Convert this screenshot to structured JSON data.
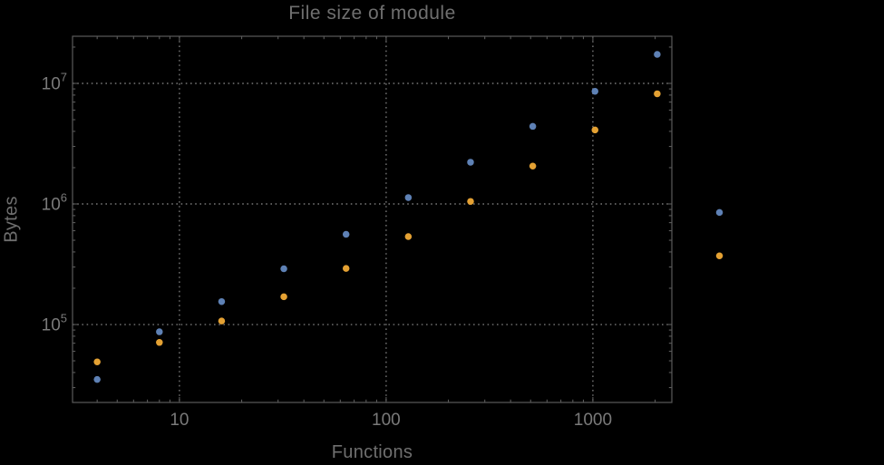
{
  "colors": {
    "background": "#000000",
    "frame": "#5a5a5a",
    "grid": "#757575",
    "label_text": "#6f6f6f",
    "tick_text": "#7a7a7a",
    "series_blue": "#5e81b5",
    "series_orange": "#e4a133"
  },
  "chart_data": {
    "type": "scatter",
    "title": "File size of module",
    "xlabel": "Functions",
    "ylabel": "Bytes",
    "xscale": "log",
    "yscale": "log",
    "xlim": [
      3.04,
      2410
    ],
    "ylim": [
      22570,
      24600000
    ],
    "grid": true,
    "grid_style": "dotted",
    "legend": false,
    "x_ticks": [
      {
        "value": 10,
        "label": "10"
      },
      {
        "value": 100,
        "label": "100"
      },
      {
        "value": 1000,
        "label": "1000"
      }
    ],
    "y_ticks": [
      {
        "value": 100000,
        "label": "10^5",
        "mantissa": "10",
        "exponent": "5"
      },
      {
        "value": 1000000,
        "label": "10^6",
        "mantissa": "10",
        "exponent": "6"
      },
      {
        "value": 10000000,
        "label": "10^7",
        "mantissa": "10",
        "exponent": "7"
      }
    ],
    "x": [
      4,
      8,
      16,
      32,
      64,
      128,
      256,
      512,
      1024,
      2048,
      4096
    ],
    "series": [
      {
        "name": "blue-series",
        "color": "#5e81b5",
        "values": [
          35000,
          87000,
          155000,
          290000,
          560000,
          1130000,
          2220000,
          4400000,
          8600000,
          17400000,
          850000
        ]
      },
      {
        "name": "orange-series",
        "color": "#e4a133",
        "values": [
          49000,
          71000,
          107000,
          170000,
          292000,
          536000,
          1050000,
          2060000,
          4110000,
          8200000,
          371000
        ]
      }
    ],
    "marker_radius": 3.75
  }
}
